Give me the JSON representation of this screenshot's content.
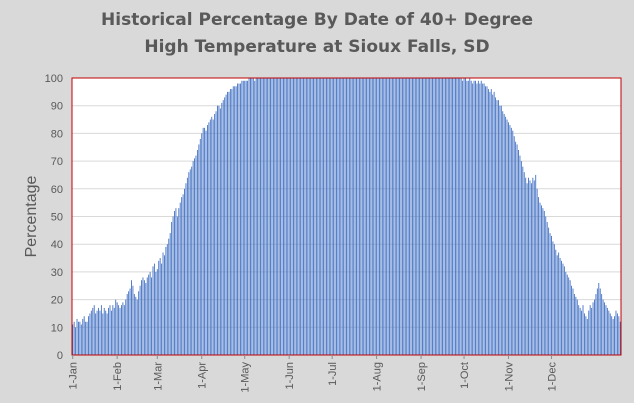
{
  "chart_data": {
    "type": "bar",
    "title": [
      "Historical Percentage By Date of 40+ Degree",
      "High Temperature at Sioux Falls, SD"
    ],
    "xlabel": "",
    "ylabel": "Percentage",
    "ylim": [
      0,
      100
    ],
    "yticks": [
      0,
      10,
      20,
      30,
      40,
      50,
      60,
      70,
      80,
      90,
      100
    ],
    "xticks": [
      {
        "label": "1-Jan",
        "day": 1
      },
      {
        "label": "1-Feb",
        "day": 32
      },
      {
        "label": "1-Mar",
        "day": 60
      },
      {
        "label": "1-Apr",
        "day": 91
      },
      {
        "label": "1-May",
        "day": 121
      },
      {
        "label": "1-Jun",
        "day": 152
      },
      {
        "label": "1-Jul",
        "day": 182
      },
      {
        "label": "1-Aug",
        "day": 213
      },
      {
        "label": "1-Sep",
        "day": 244
      },
      {
        "label": "1-Oct",
        "day": 274
      },
      {
        "label": "1-Nov",
        "day": 305
      },
      {
        "label": "1-Dec",
        "day": 335
      }
    ],
    "x": "day of year 1-365",
    "values": [
      11,
      12,
      10,
      13,
      12,
      12,
      11,
      13,
      14,
      12,
      12,
      14,
      15,
      16,
      17,
      18,
      15,
      16,
      17,
      16,
      18,
      15,
      17,
      16,
      15,
      17,
      18,
      16,
      18,
      17,
      20,
      19,
      18,
      17,
      18,
      19,
      18,
      20,
      22,
      23,
      24,
      27,
      25,
      22,
      21,
      20,
      23,
      25,
      27,
      28,
      27,
      26,
      28,
      29,
      30,
      28,
      32,
      33,
      30,
      31,
      34,
      35,
      33,
      37,
      36,
      39,
      40,
      42,
      44,
      48,
      50,
      52,
      53,
      50,
      53,
      55,
      57,
      58,
      60,
      62,
      64,
      66,
      67,
      68,
      70,
      71,
      72,
      74,
      76,
      78,
      80,
      82,
      82,
      81,
      83,
      84,
      85,
      86,
      85,
      87,
      88,
      90,
      90,
      89,
      91,
      92,
      93,
      94,
      95,
      95,
      96,
      96,
      97,
      97,
      97,
      98,
      98,
      98,
      99,
      99,
      99,
      99,
      99,
      100,
      100,
      100,
      100,
      99,
      100,
      100,
      100,
      100,
      100,
      100,
      100,
      100,
      100,
      100,
      100,
      100,
      100,
      100,
      100,
      100,
      100,
      100,
      100,
      100,
      100,
      100,
      100,
      100,
      100,
      100,
      100,
      100,
      100,
      100,
      100,
      100,
      100,
      100,
      100,
      100,
      100,
      100,
      100,
      100,
      100,
      100,
      100,
      100,
      100,
      100,
      100,
      100,
      100,
      100,
      100,
      100,
      100,
      100,
      100,
      100,
      100,
      100,
      100,
      100,
      100,
      100,
      100,
      100,
      100,
      100,
      100,
      100,
      100,
      100,
      100,
      100,
      100,
      100,
      100,
      100,
      100,
      100,
      100,
      100,
      100,
      100,
      100,
      100,
      100,
      100,
      100,
      100,
      100,
      100,
      100,
      100,
      100,
      100,
      100,
      100,
      100,
      100,
      100,
      100,
      100,
      100,
      100,
      100,
      100,
      100,
      100,
      100,
      100,
      100,
      100,
      100,
      100,
      100,
      100,
      100,
      100,
      100,
      100,
      100,
      100,
      100,
      100,
      100,
      100,
      100,
      100,
      100,
      100,
      100,
      100,
      100,
      100,
      100,
      100,
      100,
      100,
      100,
      100,
      100,
      100,
      100,
      100,
      100,
      99,
      100,
      100,
      99,
      99,
      100,
      99,
      98,
      99,
      99,
      98,
      99,
      98,
      99,
      98,
      98,
      97,
      97,
      96,
      95,
      96,
      94,
      95,
      93,
      92,
      92,
      90,
      90,
      88,
      87,
      86,
      85,
      84,
      83,
      82,
      81,
      79,
      77,
      76,
      74,
      72,
      70,
      68,
      66,
      64,
      62,
      64,
      63,
      62,
      64,
      63,
      65,
      60,
      57,
      55,
      54,
      53,
      52,
      50,
      48,
      46,
      44,
      43,
      41,
      40,
      38,
      36,
      37,
      35,
      34,
      33,
      32,
      30,
      29,
      28,
      27,
      25,
      24,
      22,
      21,
      20,
      18,
      17,
      16,
      18,
      15,
      14,
      13,
      16,
      18,
      17,
      19,
      20,
      22,
      24,
      26,
      24,
      22,
      20,
      19,
      18,
      17,
      16,
      15,
      14,
      13,
      14,
      16,
      15,
      14,
      12
    ]
  },
  "colors": {
    "background": "#d9d9d9",
    "plot_area": "#ffffff",
    "bar": "#4472c4",
    "plot_border": "#c00000",
    "gridline": "#d9d9d9",
    "text": "#595959"
  }
}
